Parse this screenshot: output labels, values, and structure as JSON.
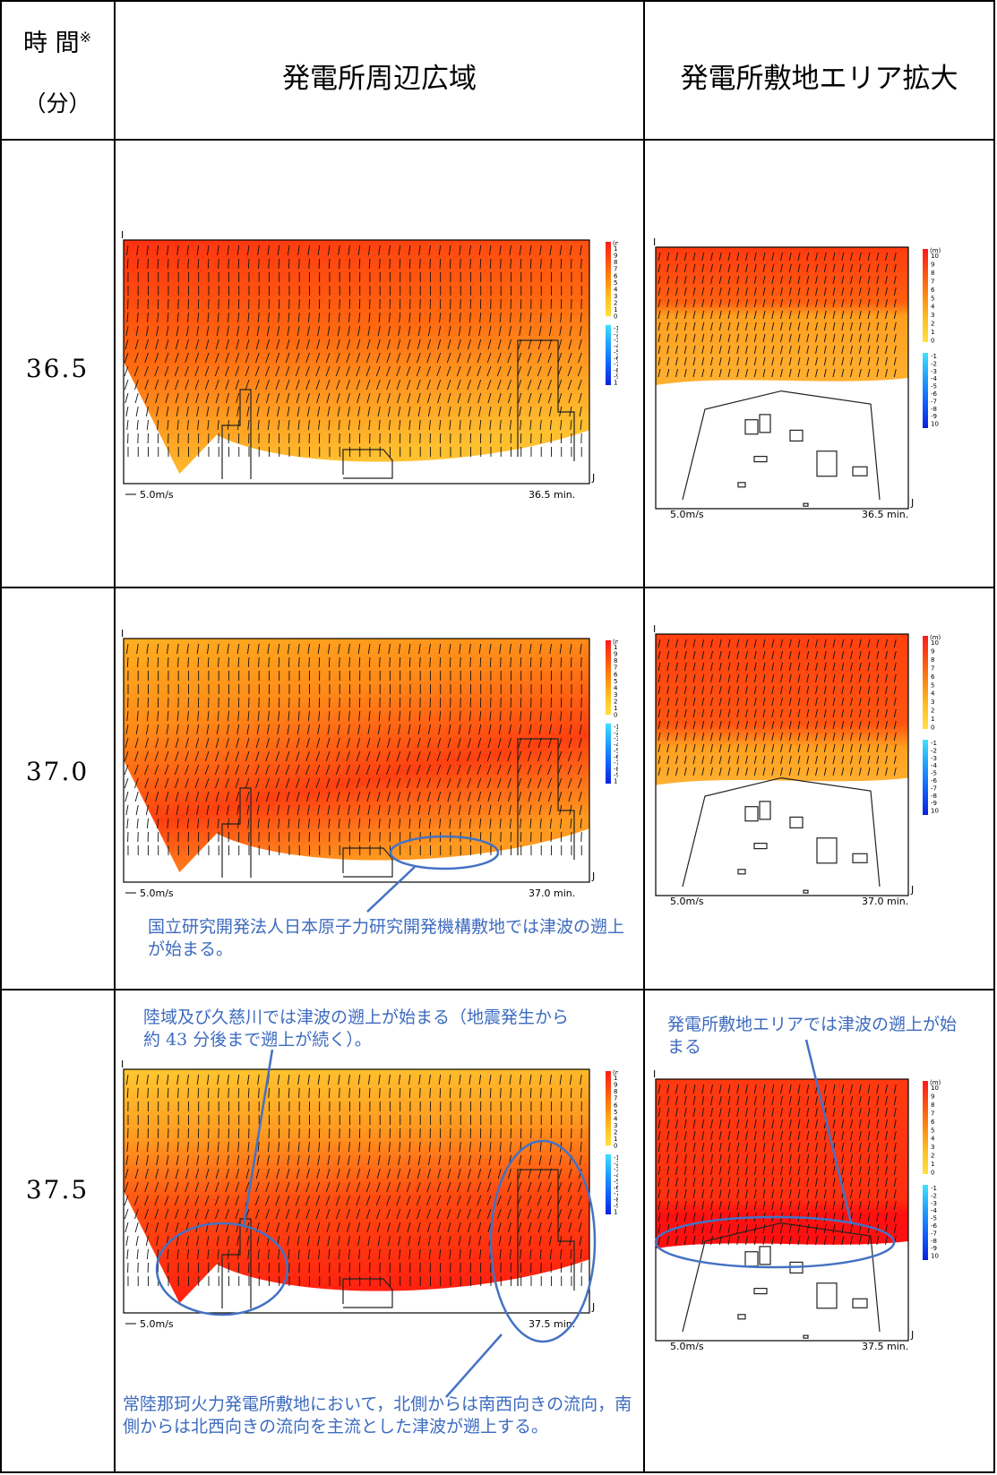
{
  "header": {
    "time_label": "時 間",
    "time_mark": "※",
    "time_unit": "（分）",
    "col_wide": "発電所周辺広域",
    "col_zoom": "発電所敷地エリア拡大"
  },
  "rows": [
    {
      "time": "36.5",
      "wide_velocity_label": "5.0m/s",
      "wide_time_label": "36.5 min.",
      "zoom_velocity_label": "5.0m/s",
      "zoom_time_label": "36.5 min."
    },
    {
      "time": "37.0",
      "wide_velocity_label": "5.0m/s",
      "wide_time_label": "37.0 min.",
      "zoom_velocity_label": "5.0m/s",
      "zoom_time_label": "37.0 min.",
      "annotation_below": "国立研究開発法人日本原子力研究開発機構敷地では津波の遡上が始まる。"
    },
    {
      "time": "37.5",
      "wide_velocity_label": "5.0m/s",
      "wide_time_label": "37.5 min.",
      "zoom_velocity_label": "5.0m/s",
      "zoom_time_label": "37.5 min.",
      "annotation_top_wide": "陸域及び久慈川では津波の遡上が始まる（地震発生から約 43 分後まで遡上が続く）。",
      "annotation_top_zoom": "発電所敷地エリアでは津波の遡上が始まる",
      "annotation_bottom_wide": "常陸那珂火力発電所敷地において，北側からは南西向きの流向，南側からは北西向きの流向を主流とした津波が遡上する。"
    }
  ],
  "colorbar": {
    "unit": "(m)",
    "positive_ticks": [
      "10",
      "9",
      "8",
      "7",
      "6",
      "5",
      "4",
      "3",
      "2",
      "1",
      "0"
    ],
    "negative_ticks": [
      "-1",
      "-2",
      "-3",
      "-4",
      "-5",
      "-6",
      "-7",
      "-8",
      "-9",
      "10"
    ],
    "colors": [
      "#ff2020",
      "#ff5a10",
      "#ff8a10",
      "#ffb020",
      "#ffd830",
      "#33c8ff",
      "#1a8cff",
      "#0a3cff"
    ]
  },
  "axis_marks": {
    "i": "I",
    "j": "J"
  }
}
